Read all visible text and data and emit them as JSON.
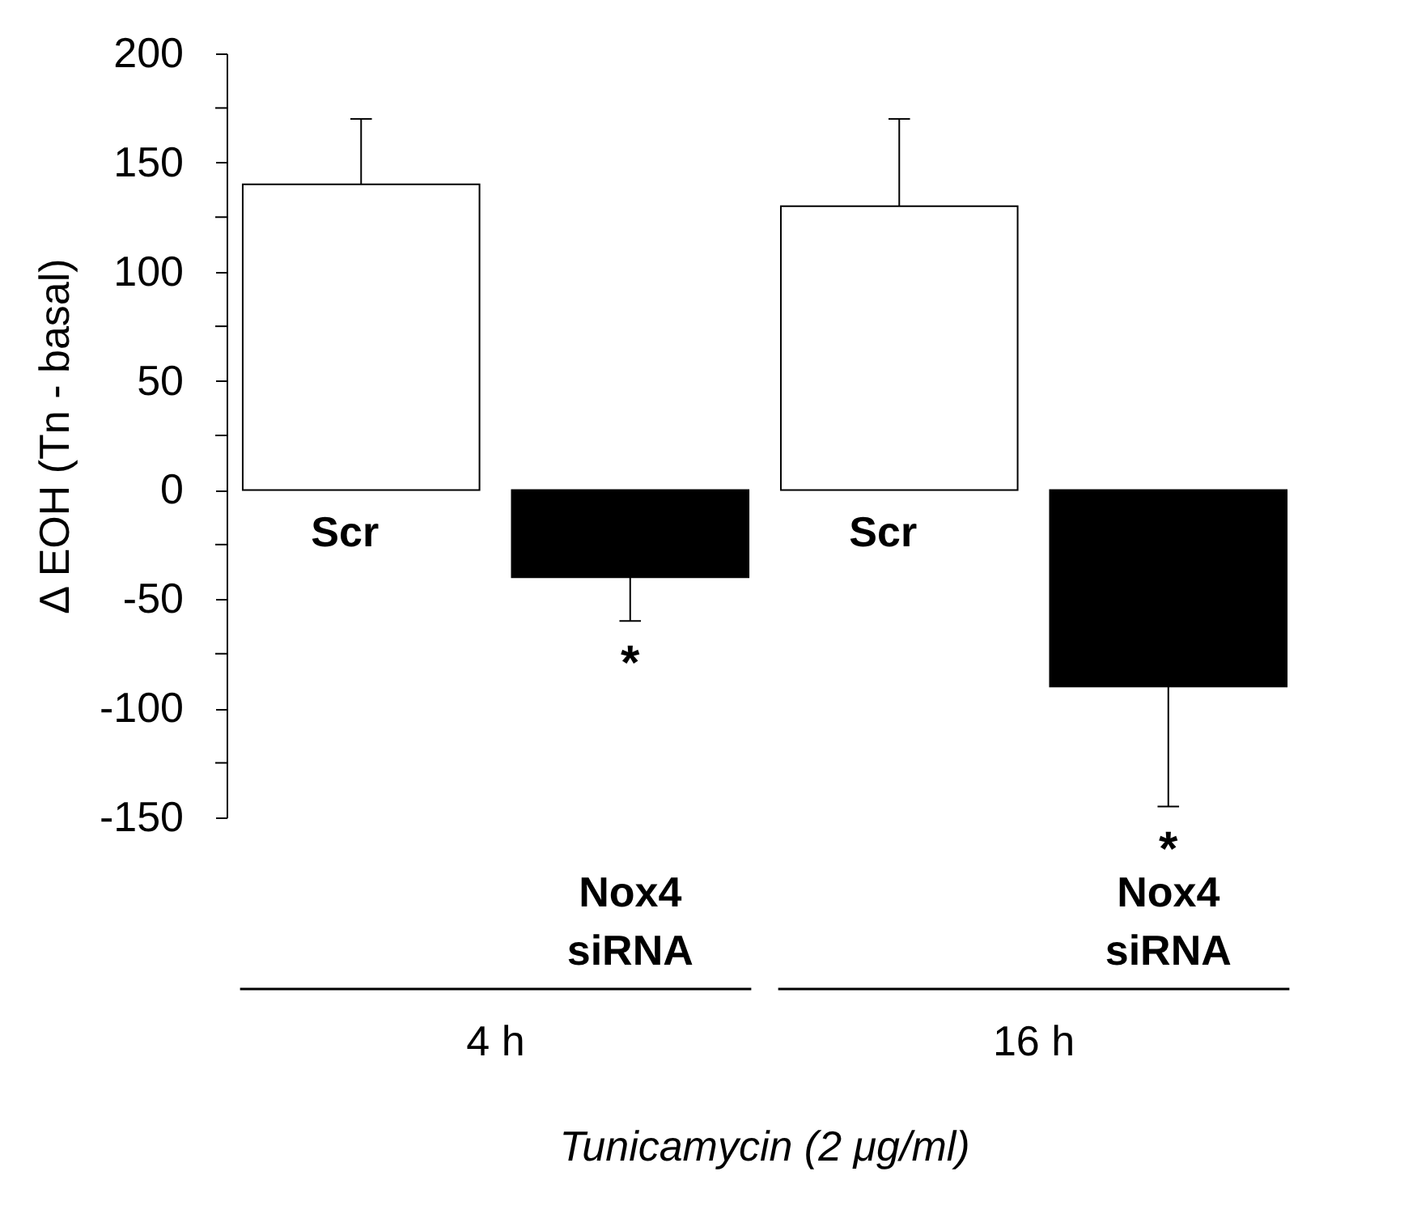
{
  "chart_data": {
    "type": "bar",
    "ylabel": "Δ EOH  (Tn - basal)",
    "categories": [
      "Scr",
      "Nox4 siRNA",
      "Scr",
      "Nox4 siRNA"
    ],
    "values": [
      140,
      -40,
      130,
      -90
    ],
    "colors": [
      "#ffffff",
      "#000000",
      "#ffffff",
      "#000000"
    ],
    "errors": [
      [
        140,
        170
      ],
      [
        -60,
        -40
      ],
      [
        130,
        170
      ],
      [
        -145,
        -90
      ]
    ],
    "ylim": [
      -150,
      200
    ],
    "yticks": [
      -150,
      {
        "value": -125,
        "label": null
      },
      -100,
      {
        "value": -75,
        "label": null
      },
      -50,
      {
        "value": -25,
        "label": null
      },
      0,
      {
        "value": 25,
        "label": null
      },
      50,
      {
        "value": 75,
        "label": null
      },
      100,
      {
        "value": 125,
        "label": null
      },
      150,
      {
        "value": 175,
        "label": null
      },
      200
    ],
    "annotations": [
      "*",
      "*",
      "4 h",
      "16 h",
      "Tunicamycin (2 μg/ml)"
    ],
    "grid": false
  }
}
